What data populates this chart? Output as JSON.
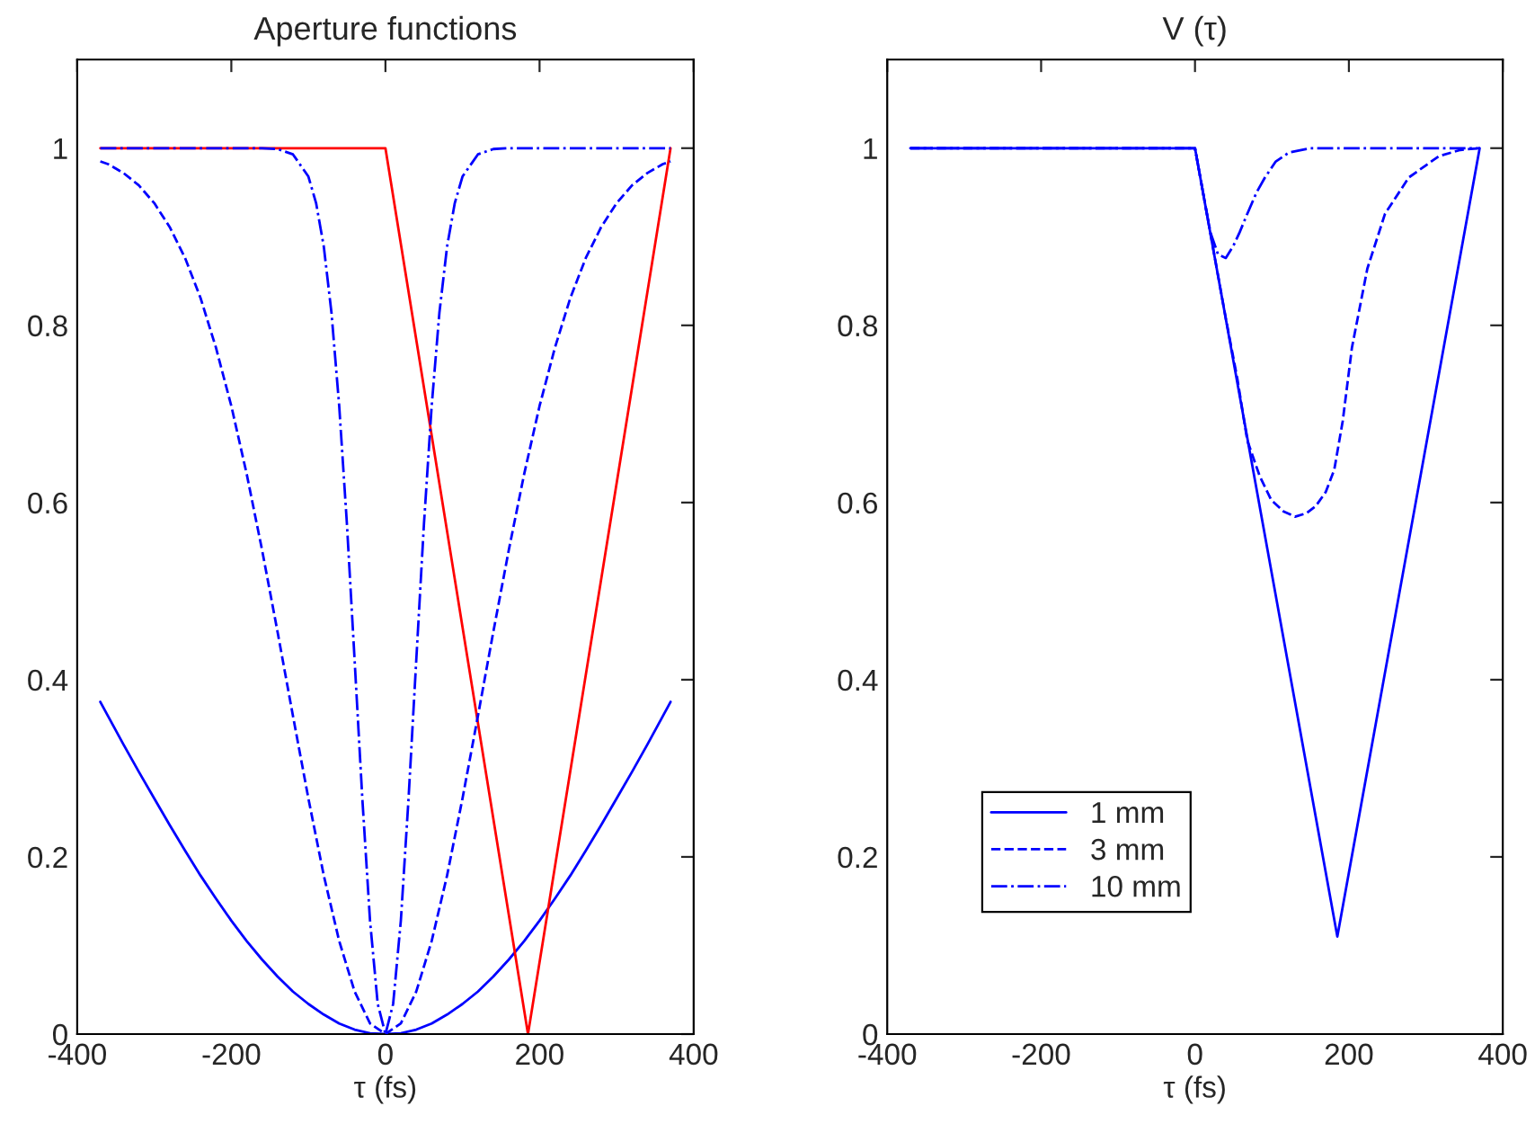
{
  "chart_data": [
    {
      "type": "line",
      "title": "Aperture functions",
      "xlabel": "τ (fs)",
      "xlim": [
        -400,
        400
      ],
      "ylim": [
        0,
        1.1
      ],
      "xticks": [
        -400,
        -200,
        0,
        200,
        400
      ],
      "yticks": [
        0,
        0.2,
        0.4,
        0.6,
        0.8,
        1
      ],
      "grid": false,
      "legend": false,
      "series": [
        {
          "color": "#0000ff",
          "line_style": "solid",
          "x": [
            -370,
            -360,
            -340,
            -320,
            -300,
            -280,
            -260,
            -240,
            -220,
            -200,
            -180,
            -160,
            -140,
            -120,
            -100,
            -80,
            -60,
            -40,
            -20,
            0,
            20,
            40,
            60,
            80,
            100,
            120,
            140,
            160,
            180,
            200,
            220,
            240,
            260,
            280,
            300,
            320,
            340,
            360,
            370
          ],
          "values": [
            0.375,
            0.359,
            0.327,
            0.296,
            0.266,
            0.236,
            0.207,
            0.179,
            0.153,
            0.128,
            0.105,
            0.084,
            0.065,
            0.048,
            0.034,
            0.022,
            0.012,
            0.005,
            0.001,
            0,
            0.001,
            0.005,
            0.012,
            0.022,
            0.034,
            0.048,
            0.065,
            0.084,
            0.105,
            0.128,
            0.153,
            0.179,
            0.207,
            0.236,
            0.266,
            0.296,
            0.327,
            0.359,
            0.375
          ]
        },
        {
          "color": "#0000ff",
          "line_style": "dashed",
          "x": [
            -370,
            -360,
            -340,
            -320,
            -300,
            -280,
            -260,
            -240,
            -220,
            -200,
            -180,
            -160,
            -140,
            -120,
            -100,
            -80,
            -60,
            -40,
            -20,
            0,
            20,
            40,
            60,
            80,
            100,
            120,
            140,
            160,
            180,
            200,
            220,
            240,
            260,
            280,
            300,
            320,
            340,
            360,
            370
          ],
          "values": [
            0.985,
            0.982,
            0.972,
            0.958,
            0.938,
            0.911,
            0.876,
            0.831,
            0.775,
            0.709,
            0.632,
            0.546,
            0.454,
            0.359,
            0.266,
            0.179,
            0.105,
            0.048,
            0.012,
            0,
            0.012,
            0.048,
            0.105,
            0.179,
            0.266,
            0.359,
            0.454,
            0.546,
            0.632,
            0.709,
            0.775,
            0.831,
            0.876,
            0.911,
            0.938,
            0.958,
            0.972,
            0.982,
            0.985
          ]
        },
        {
          "color": "#0000ff",
          "line_style": "dashdot",
          "x": [
            -370,
            -160,
            -140,
            -120,
            -100,
            -90,
            -80,
            -70,
            -60,
            -50,
            -40,
            -30,
            -20,
            -10,
            0,
            10,
            20,
            30,
            40,
            50,
            60,
            70,
            80,
            90,
            100,
            120,
            140,
            160,
            370
          ],
          "values": [
            1,
            1,
            0.999,
            0.993,
            0.968,
            0.938,
            0.889,
            0.814,
            0.709,
            0.576,
            0.422,
            0.266,
            0.128,
            0.034,
            0,
            0.034,
            0.128,
            0.266,
            0.422,
            0.576,
            0.709,
            0.814,
            0.889,
            0.938,
            0.968,
            0.993,
            0.999,
            1,
            1
          ]
        },
        {
          "color": "#ff0000",
          "line_style": "solid",
          "x": [
            -370,
            0,
            185,
            370
          ],
          "values": [
            1,
            1,
            0,
            1
          ]
        }
      ]
    },
    {
      "type": "line",
      "title": "V (τ)",
      "xlabel": "τ (fs)",
      "xlim": [
        -400,
        400
      ],
      "ylim": [
        0,
        1.1
      ],
      "xticks": [
        -400,
        -200,
        0,
        200,
        400
      ],
      "yticks": [
        0,
        0.2,
        0.4,
        0.6,
        0.8,
        1
      ],
      "grid": false,
      "legend": "bottom left",
      "series": [
        {
          "name": "1 mm",
          "color": "#0000ff",
          "line_style": "solid",
          "x": [
            -370,
            0,
            185,
            370
          ],
          "values": [
            1,
            1,
            0.11,
            1
          ]
        },
        {
          "name": "3 mm",
          "color": "#0000ff",
          "line_style": "dashed",
          "x": [
            -370,
            0,
            20,
            40,
            55,
            68,
            84,
            99,
            115,
            130,
            145,
            157,
            170,
            181,
            192,
            204,
            224,
            247,
            278,
            317,
            345,
            370
          ],
          "values": [
            1,
            1,
            0.904,
            0.808,
            0.74,
            0.67,
            0.63,
            0.603,
            0.59,
            0.584,
            0.588,
            0.596,
            0.612,
            0.637,
            0.692,
            0.775,
            0.864,
            0.926,
            0.967,
            0.991,
            0.998,
            1
          ]
        },
        {
          "name": "10 mm",
          "color": "#0000ff",
          "line_style": "dashdot",
          "x": [
            -370,
            0,
            10,
            20,
            30,
            40,
            50,
            58,
            68,
            80,
            91,
            105,
            122,
            150,
            370
          ],
          "values": [
            1,
            1,
            0.952,
            0.905,
            0.88,
            0.876,
            0.89,
            0.905,
            0.926,
            0.95,
            0.967,
            0.985,
            0.995,
            1,
            1
          ]
        }
      ]
    }
  ]
}
